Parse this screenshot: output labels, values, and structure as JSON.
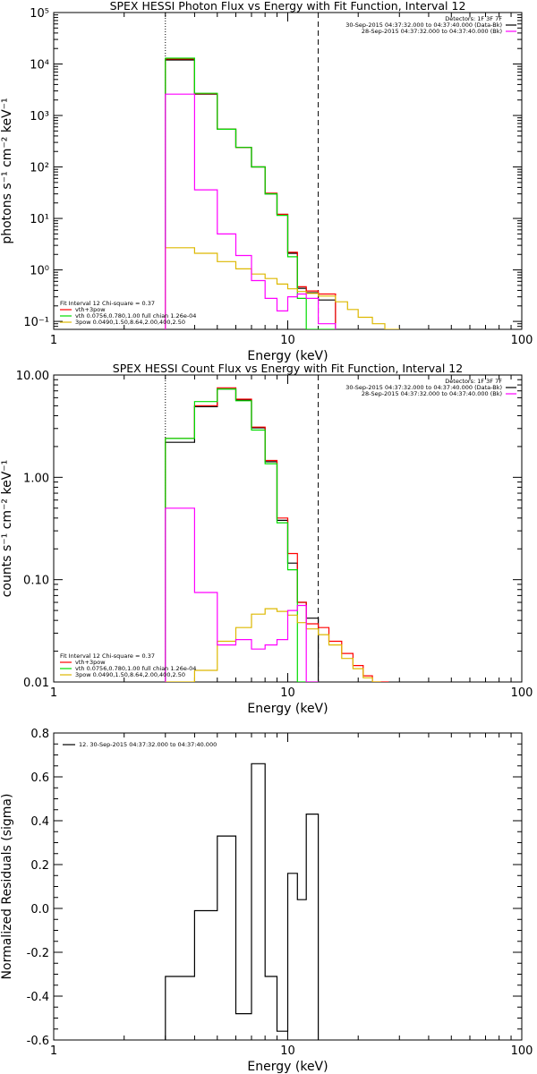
{
  "chart_data": [
    {
      "type": "histogram-step",
      "title": "SPEX HESSI Photon Flux vs Energy with Fit Function, Interval 12",
      "xlabel": "Energy (keV)",
      "ylabel": "photons s⁻¹ cm⁻² keV⁻¹",
      "xscale": "log",
      "yscale": "log",
      "xlim": [
        1,
        100
      ],
      "ylim": [
        0.07,
        100000
      ],
      "yticks": [
        0.1,
        1,
        10,
        100,
        1000,
        10000,
        100000
      ],
      "ytick_labels": [
        "10⁻¹",
        "10⁰",
        "10¹",
        "10²",
        "10³",
        "10⁴",
        "10⁵"
      ],
      "xticks": [
        1,
        10,
        100
      ],
      "xtick_labels": [
        "1",
        "10",
        "100"
      ],
      "fit_range_keV": [
        3,
        13.5
      ],
      "header_lines": [
        "Detectors: 1F 3F 7F",
        "30-Sep-2015 04:37:32.000 to 04:37:40.000 (Data-Bk)",
        "28-Sep-2015 04:37:32.000 to 04:37:40.000 (Bk)"
      ],
      "header_colors": [
        "",
        "#000000",
        "#ff00ff"
      ],
      "legend": [
        {
          "label": "Fit Interval 12   Chi-square = 0.37",
          "color": ""
        },
        {
          "label": "vth+3pow",
          "color": "#ff0000"
        },
        {
          "label": "vth 0.0756,0.780,1.00  full chian 1.26e-04",
          "color": "#00dd00"
        },
        {
          "label": "3pow 0.0490,1.50,8.64,2.00,400,2.50",
          "color": "#ddb800"
        }
      ],
      "bin_edges": [
        3,
        4,
        5,
        6,
        7,
        8,
        9,
        10,
        11,
        12,
        13.5,
        16,
        18,
        20,
        23,
        26,
        30
      ],
      "series": [
        {
          "name": "data",
          "color": "#000000",
          "values": [
            12000,
            2600,
            540,
            240,
            100,
            30,
            12,
            2.1,
            0.44,
            0.36,
            0.26
          ]
        },
        {
          "name": "vth+3pow",
          "color": "#ff0000",
          "values": [
            12500,
            2650,
            540,
            240,
            100,
            31,
            12,
            2.2,
            0.47,
            0.39,
            0.34
          ]
        },
        {
          "name": "vth",
          "color": "#00dd00",
          "values": [
            13000,
            2700,
            540,
            240,
            100,
            30,
            11.5,
            1.8,
            0.28,
            0.07,
            0.07
          ]
        },
        {
          "name": "3pow",
          "color": "#ddb800",
          "values": [
            2.7,
            2.1,
            1.45,
            1.05,
            0.83,
            0.68,
            0.53,
            0.43,
            0.38,
            0.35,
            0.31,
            0.24,
            0.17,
            0.12,
            0.09,
            0.07
          ]
        },
        {
          "name": "Bk",
          "color": "#ff00ff",
          "values": [
            2600,
            36,
            5,
            1.9,
            0.62,
            0.28,
            0.16,
            0.3,
            0.34,
            0.28,
            0.09
          ]
        }
      ]
    },
    {
      "type": "histogram-step",
      "title": "SPEX HESSI Count Flux vs Energy with Fit Function, Interval 12",
      "xlabel": "Energy (keV)",
      "ylabel": "counts s⁻¹ cm⁻² keV⁻¹",
      "xscale": "log",
      "yscale": "log",
      "xlim": [
        1,
        100
      ],
      "ylim": [
        0.01,
        10
      ],
      "yticks": [
        0.01,
        0.1,
        1,
        10
      ],
      "ytick_labels": [
        "0.01",
        "0.10",
        "1.00",
        "10.00"
      ],
      "xticks": [
        1,
        10,
        100
      ],
      "xtick_labels": [
        "1",
        "10",
        "100"
      ],
      "fit_range_keV": [
        3,
        13.5
      ],
      "header_lines": [
        "Detectors: 1F 3F 7F",
        "30-Sep-2015 04:37:32.000 to 04:37:40.000 (Data-Bk)",
        "28-Sep-2015 04:37:32.000 to 04:37:40.000 (Bk)"
      ],
      "header_colors": [
        "",
        "#000000",
        "#ff00ff"
      ],
      "legend": [
        {
          "label": "Fit Interval 12   Chi-square = 0.37",
          "color": ""
        },
        {
          "label": "vth+3pow",
          "color": "#ff0000"
        },
        {
          "label": "vth 0.0756,0.780,1.00  full chian 1.26e-04",
          "color": "#00dd00"
        },
        {
          "label": "3pow 0.0490,1.50,8.64,2.00,400,2.50",
          "color": "#ddb800"
        }
      ],
      "bin_edges": [
        3,
        4,
        5,
        6,
        7,
        8,
        9,
        10,
        11,
        12,
        13.5,
        15,
        17,
        19,
        21,
        23,
        25,
        27
      ],
      "series": [
        {
          "name": "data",
          "color": "#000000",
          "values": [
            2.2,
            4.9,
            7.3,
            5.7,
            3.05,
            1.42,
            0.38,
            0.145,
            0.06,
            0.042
          ]
        },
        {
          "name": "vth+3pow",
          "color": "#ff0000",
          "values": [
            2.4,
            5.0,
            7.5,
            5.8,
            3.1,
            1.46,
            0.4,
            0.18,
            0.06,
            0.037,
            0.034,
            0.025,
            0.019,
            0.0145,
            0.0115,
            0.0092,
            0.0075
          ]
        },
        {
          "name": "vth",
          "color": "#00dd00",
          "values": [
            2.4,
            5.5,
            7.3,
            5.6,
            2.9,
            1.36,
            0.36,
            0.125,
            0.009,
            0.009
          ]
        },
        {
          "name": "3pow",
          "color": "#ddb800",
          "values": [
            0.009,
            0.013,
            0.025,
            0.034,
            0.046,
            0.052,
            0.049,
            0.045,
            0.038,
            0.033,
            0.029,
            0.023,
            0.017,
            0.0135,
            0.011,
            0.009
          ]
        },
        {
          "name": "Bk",
          "color": "#ff00ff",
          "values": [
            0.5,
            0.075,
            0.023,
            0.026,
            0.021,
            0.023,
            0.026,
            0.05,
            0.056,
            0.009
          ]
        }
      ]
    },
    {
      "type": "histogram-step",
      "title": "",
      "xlabel": "Energy (keV)",
      "ylabel": "Normalized Residuals (sigma)",
      "xscale": "log",
      "yscale": "linear",
      "xlim": [
        1,
        100
      ],
      "ylim": [
        -0.6,
        0.8
      ],
      "yticks": [
        -0.6,
        -0.4,
        -0.2,
        0.0,
        0.2,
        0.4,
        0.6,
        0.8
      ],
      "ytick_labels": [
        "-0.6",
        "-0.4",
        "-0.2",
        "0.0",
        "0.2",
        "0.4",
        "0.6",
        "0.8"
      ],
      "xticks": [
        1,
        10,
        100
      ],
      "xtick_labels": [
        "1",
        "10",
        "100"
      ],
      "legend": [
        {
          "label": "12. 30-Sep-2015 04:37:32.000 to 04:37:40.000",
          "color": "#000000"
        }
      ],
      "bin_edges": [
        3,
        4,
        5,
        6,
        7,
        8,
        9,
        10,
        11,
        12,
        13.5
      ],
      "series": [
        {
          "name": "residuals",
          "color": "#000000",
          "values": [
            -0.31,
            -0.01,
            0.33,
            -0.48,
            0.66,
            -0.31,
            -0.56,
            0.16,
            0.04,
            0.43
          ]
        }
      ]
    }
  ]
}
